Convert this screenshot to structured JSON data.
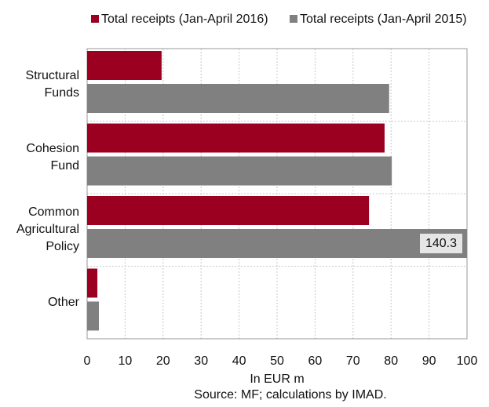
{
  "chart_data": {
    "type": "hbar",
    "categories": [
      "Structural Funds",
      "Cohesion Fund",
      "Common Agricultural Policy",
      "Other"
    ],
    "series": [
      {
        "name": "Total receipts (Jan-April 2016)",
        "color": "#9b0020",
        "values": [
          19.6,
          78.3,
          74.2,
          2.7
        ]
      },
      {
        "name": "Total receipts (Jan-April 2015)",
        "color": "#808080",
        "values": [
          79.5,
          80.2,
          140.3,
          3.1
        ],
        "value_labels": [
          null,
          null,
          "140.3",
          null
        ]
      }
    ],
    "xlim": [
      0,
      100
    ],
    "xticks": [
      0,
      10,
      20,
      30,
      40,
      50,
      60,
      70,
      80,
      90,
      100
    ],
    "x_label": "In EUR m",
    "source": "Source: MF; calculations by IMAD.",
    "grid": true,
    "legend": "top"
  }
}
